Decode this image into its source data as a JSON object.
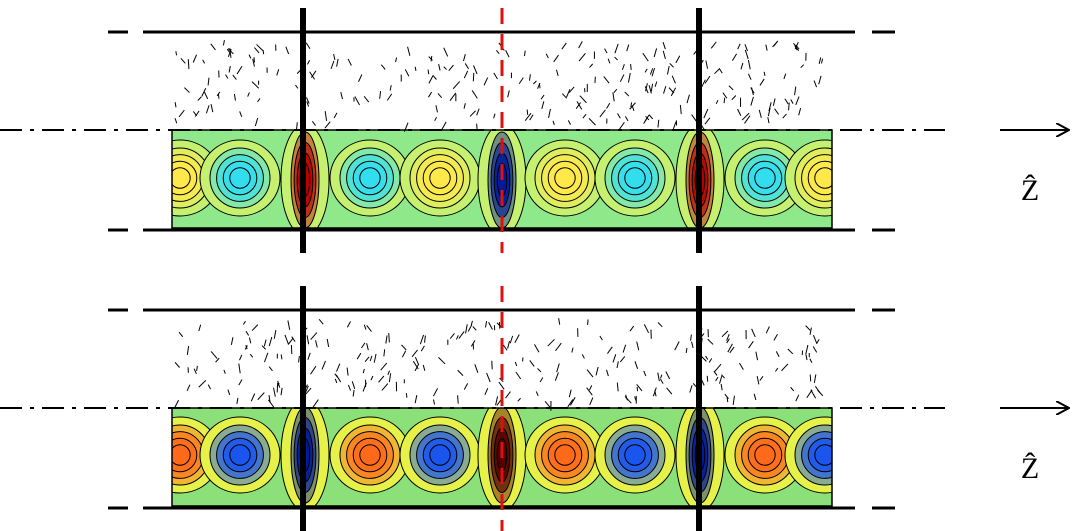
{
  "panels": [
    {
      "axis_label": "Ẑ"
    },
    {
      "axis_label": "Ẑ"
    }
  ]
}
